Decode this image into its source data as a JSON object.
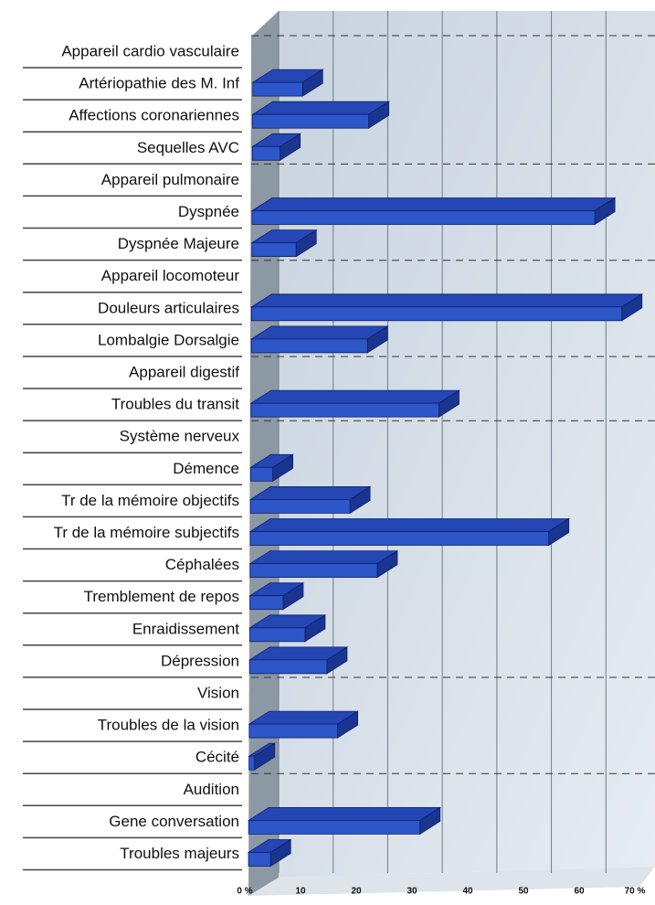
{
  "chart_data": {
    "type": "bar",
    "orientation": "horizontal",
    "categories": [
      "Appareil cardio vasculaire",
      "Artériopathie des M. Inf",
      "Affections coronariennes",
      "Sequelles AVC",
      "Appareil pulmonaire",
      "Dyspnée",
      "Dyspnée Majeure",
      "Appareil locomoteur",
      "Douleurs articulaires",
      "Lombalgie Dorsalgie",
      "Appareil digestif",
      "Troubles du transit",
      "Système nerveux",
      "Démence",
      "Tr de la mémoire objectifs",
      "Tr de la mémoire subjectifs",
      "Céphalées",
      "Tremblement de repos",
      "Enraidissement",
      "Dépression",
      "Vision",
      "Troubles de la vision",
      "Cécité",
      "Audition",
      "Gene conversation",
      "Troubles majeurs"
    ],
    "values": [
      null,
      9,
      21,
      5,
      null,
      62,
      8,
      null,
      67,
      21,
      null,
      34,
      null,
      4,
      18,
      54,
      23,
      6,
      10,
      14,
      null,
      16,
      1,
      null,
      31,
      4
    ],
    "color": "#2d56c8",
    "xlim": [
      0,
      70
    ],
    "xticks": [
      {
        "value": 0,
        "label": "0 %"
      },
      10,
      20,
      30,
      40,
      50,
      60,
      {
        "value": 70,
        "label": "70 %"
      }
    ],
    "grid": true
  }
}
